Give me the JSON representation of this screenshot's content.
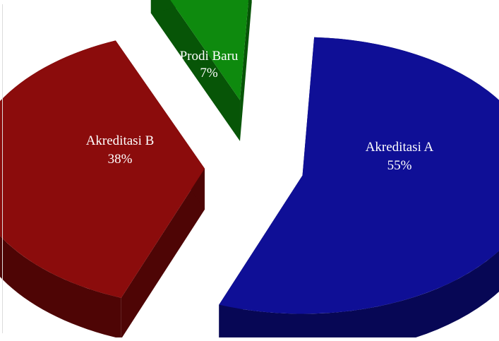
{
  "chart_data": {
    "type": "pie",
    "three_d": true,
    "exploded": true,
    "legend": "none",
    "slices": [
      {
        "name": "Akreditasi A",
        "value": 55,
        "label": "Akreditasi A",
        "percent_label": "55%",
        "color": "#0f0f96",
        "side_color": "#070755"
      },
      {
        "name": "Akreditasi B",
        "value": 38,
        "label": "Akreditasi B",
        "percent_label": "38%",
        "color": "#8b0c0c",
        "side_color": "#4e0505"
      },
      {
        "name": "Prodi Baru",
        "value": 7,
        "label": "Prodi Baru",
        "percent_label": "7%",
        "color": "#0e8a0e",
        "side_color": "#075507"
      }
    ]
  }
}
